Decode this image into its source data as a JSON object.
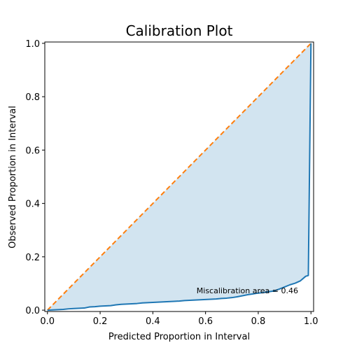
{
  "chart_data": {
    "type": "line",
    "title": "Calibration Plot",
    "xlabel": "Predicted Proportion in Interval",
    "ylabel": "Observed Proportion in Interval",
    "xlim": [
      -0.01,
      1.01
    ],
    "ylim": [
      -0.005,
      1.005
    ],
    "xticks": [
      0.0,
      0.2,
      0.4,
      0.6,
      0.8,
      1.0
    ],
    "xtick_labels": [
      "0.0",
      "0.2",
      "0.4",
      "0.6",
      "0.8",
      "1.0"
    ],
    "yticks": [
      0.0,
      0.2,
      0.4,
      0.6,
      0.8,
      1.0
    ],
    "ytick_labels": [
      "0.0",
      "0.2",
      "0.4",
      "0.6",
      "0.8",
      "1.0"
    ],
    "grid": false,
    "annotation": "Miscalibration area = 0.46",
    "colors": {
      "observed": "#1f77b4",
      "ideal": "#ff7f0e",
      "fill": "#1f77b4"
    },
    "series": [
      {
        "style": "solid",
        "x": [
          0.0,
          0.02,
          0.04,
          0.06,
          0.08,
          0.1,
          0.12,
          0.14,
          0.16,
          0.18,
          0.2,
          0.22,
          0.24,
          0.26,
          0.28,
          0.3,
          0.32,
          0.34,
          0.36,
          0.38,
          0.4,
          0.42,
          0.44,
          0.46,
          0.48,
          0.5,
          0.52,
          0.54,
          0.56,
          0.58,
          0.6,
          0.62,
          0.64,
          0.66,
          0.68,
          0.7,
          0.72,
          0.74,
          0.76,
          0.78,
          0.8,
          0.82,
          0.84,
          0.86,
          0.88,
          0.9,
          0.92,
          0.94,
          0.96,
          0.98,
          0.99,
          1.0
        ],
        "y": [
          0.0,
          0.001,
          0.002,
          0.003,
          0.005,
          0.006,
          0.007,
          0.008,
          0.012,
          0.013,
          0.015,
          0.016,
          0.017,
          0.02,
          0.022,
          0.023,
          0.024,
          0.025,
          0.027,
          0.028,
          0.029,
          0.03,
          0.031,
          0.032,
          0.033,
          0.034,
          0.036,
          0.037,
          0.038,
          0.039,
          0.04,
          0.041,
          0.042,
          0.044,
          0.045,
          0.047,
          0.05,
          0.054,
          0.058,
          0.061,
          0.064,
          0.066,
          0.069,
          0.072,
          0.079,
          0.087,
          0.095,
          0.101,
          0.11,
          0.127,
          0.13,
          1.0
        ]
      },
      {
        "style": "dashed",
        "x": [
          0.0,
          1.0
        ],
        "y": [
          0.0,
          1.0
        ]
      }
    ]
  }
}
